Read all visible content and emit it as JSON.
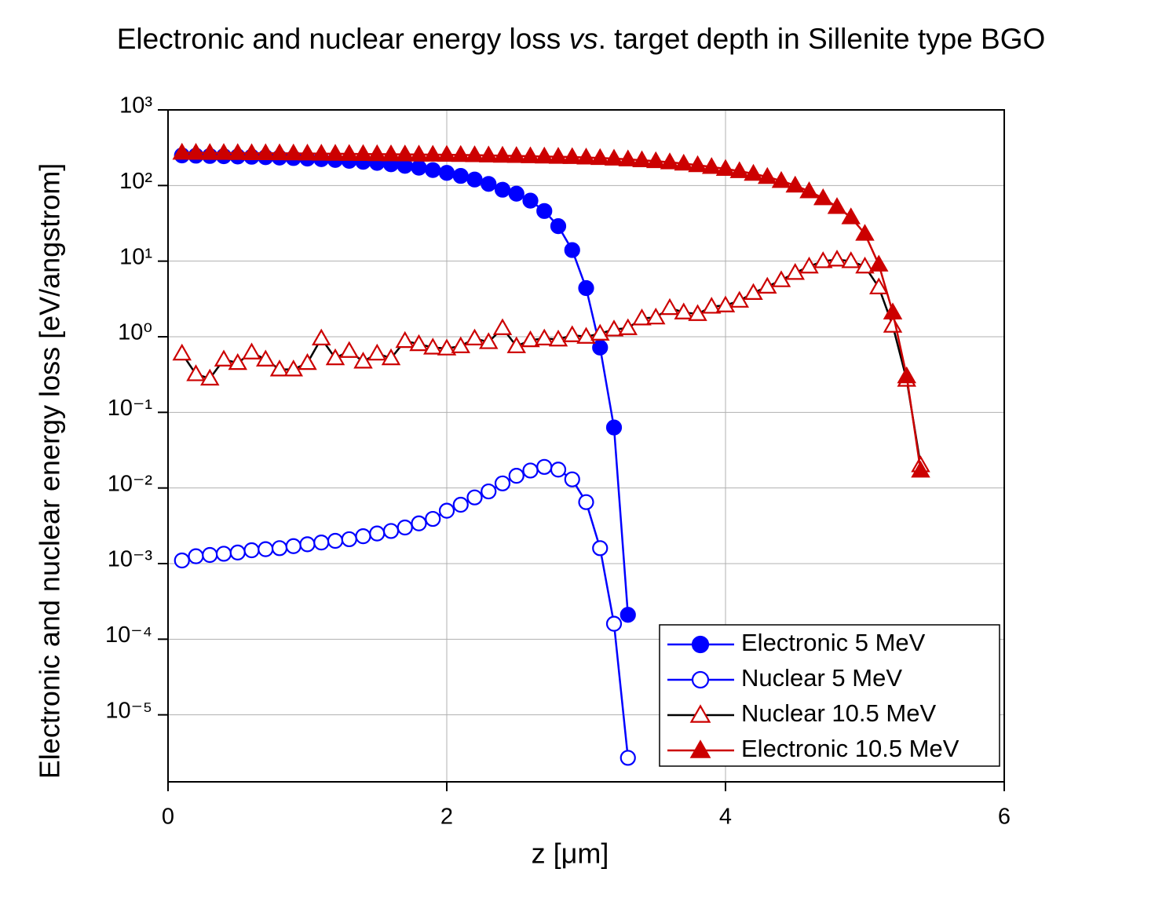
{
  "chart_data": {
    "type": "line",
    "title_parts": [
      "Electronic and nuclear energy loss ",
      "vs",
      ". target depth in Sillenite type BGO"
    ],
    "x_label": "z [μm]",
    "y_label": "Electronic and nuclear energy loss [eV/angstrom]",
    "xlim": [
      0,
      6
    ],
    "xticks": [
      0,
      2,
      4,
      6
    ],
    "ylim": [
      1.3e-06,
      1000
    ],
    "yscale": "log",
    "yticks": [
      {
        "value": 1000,
        "label": "10³"
      },
      {
        "value": 100,
        "label": "10²"
      },
      {
        "value": 10,
        "label": "10¹"
      },
      {
        "value": 1,
        "label": "10⁰"
      },
      {
        "value": 0.1,
        "label": "10⁻¹"
      },
      {
        "value": 0.01,
        "label": "10⁻²"
      },
      {
        "value": 0.001,
        "label": "10⁻³"
      },
      {
        "value": 0.0001,
        "label": "10⁻⁴"
      },
      {
        "value": 1e-05,
        "label": "10⁻⁵"
      }
    ],
    "grid": true,
    "legend": "lower right",
    "series": [
      {
        "name": "Electronic 5 MeV",
        "color": "#0000ff",
        "line_color": "#0000ff",
        "marker": "circle",
        "filled": true,
        "x": [
          0.1,
          0.2,
          0.3,
          0.4,
          0.5,
          0.6,
          0.7,
          0.8,
          0.9,
          1.0,
          1.1,
          1.2,
          1.3,
          1.4,
          1.5,
          1.6,
          1.7,
          1.8,
          1.9,
          2.0,
          2.1,
          2.2,
          2.3,
          2.4,
          2.5,
          2.6,
          2.7,
          2.8,
          2.9,
          3.0,
          3.1,
          3.2,
          3.3
        ],
        "values": [
          250,
          248,
          246,
          244,
          242,
          240,
          237,
          234,
          231,
          227,
          223,
          218,
          212,
          206,
          199,
          191,
          182,
          172,
          160,
          147,
          134,
          120,
          105,
          88,
          78,
          63,
          46,
          29,
          14,
          4.4,
          0.72,
          0.063,
          0.00021
        ]
      },
      {
        "name": "Nuclear 5 MeV",
        "color": "#0000ff",
        "line_color": "#0000ff",
        "marker": "circle",
        "filled": false,
        "x": [
          0.1,
          0.2,
          0.3,
          0.4,
          0.5,
          0.6,
          0.7,
          0.8,
          0.9,
          1.0,
          1.1,
          1.2,
          1.3,
          1.4,
          1.5,
          1.6,
          1.7,
          1.8,
          1.9,
          2.0,
          2.1,
          2.2,
          2.3,
          2.4,
          2.5,
          2.6,
          2.7,
          2.8,
          2.9,
          3.0,
          3.1,
          3.2,
          3.3
        ],
        "values": [
          0.0011,
          0.00125,
          0.0013,
          0.00135,
          0.0014,
          0.0015,
          0.00155,
          0.0016,
          0.0017,
          0.0018,
          0.0019,
          0.002,
          0.0021,
          0.0023,
          0.0025,
          0.0027,
          0.003,
          0.0034,
          0.0039,
          0.005,
          0.006,
          0.0075,
          0.009,
          0.0115,
          0.0145,
          0.017,
          0.019,
          0.0175,
          0.013,
          0.0065,
          0.0016,
          0.00016,
          2.7e-06
        ]
      },
      {
        "name": "Nuclear 10.5 MeV",
        "color": "#cc0000",
        "line_color": "#000000",
        "marker": "triangle",
        "filled": false,
        "x": [
          0.1,
          0.2,
          0.3,
          0.4,
          0.5,
          0.6,
          0.7,
          0.8,
          0.9,
          1.0,
          1.1,
          1.2,
          1.3,
          1.4,
          1.5,
          1.6,
          1.7,
          1.8,
          1.9,
          2.0,
          2.1,
          2.2,
          2.3,
          2.4,
          2.5,
          2.6,
          2.7,
          2.8,
          2.9,
          3.0,
          3.1,
          3.2,
          3.3,
          3.4,
          3.5,
          3.6,
          3.7,
          3.8,
          3.9,
          4.0,
          4.1,
          4.2,
          4.3,
          4.4,
          4.5,
          4.6,
          4.7,
          4.8,
          4.9,
          5.0,
          5.1,
          5.2,
          5.3,
          5.4
        ],
        "values": [
          0.6,
          0.32,
          0.28,
          0.5,
          0.45,
          0.62,
          0.5,
          0.37,
          0.37,
          0.45,
          0.95,
          0.52,
          0.65,
          0.47,
          0.6,
          0.52,
          0.88,
          0.8,
          0.72,
          0.7,
          0.75,
          0.95,
          0.85,
          1.3,
          0.75,
          0.9,
          0.95,
          0.92,
          1.05,
          1.0,
          1.1,
          1.25,
          1.3,
          1.75,
          1.8,
          2.4,
          2.1,
          2.0,
          2.5,
          2.6,
          3.0,
          3.8,
          4.6,
          5.6,
          7.0,
          8.5,
          10,
          10.5,
          10,
          8.5,
          4.5,
          1.4,
          0.27,
          0.02
        ]
      },
      {
        "name": "Electronic 10.5 MeV",
        "color": "#cc0000",
        "line_color": "#cc0000",
        "marker": "triangle",
        "filled": true,
        "x": [
          0.1,
          0.2,
          0.3,
          0.4,
          0.5,
          0.6,
          0.7,
          0.8,
          0.9,
          1.0,
          1.1,
          1.2,
          1.3,
          1.4,
          1.5,
          1.6,
          1.7,
          1.8,
          1.9,
          2.0,
          2.1,
          2.2,
          2.3,
          2.4,
          2.5,
          2.6,
          2.7,
          2.8,
          2.9,
          3.0,
          3.1,
          3.2,
          3.3,
          3.4,
          3.5,
          3.6,
          3.7,
          3.8,
          3.9,
          4.0,
          4.1,
          4.2,
          4.3,
          4.4,
          4.5,
          4.6,
          4.7,
          4.8,
          4.9,
          5.0,
          5.1,
          5.2,
          5.3,
          5.4
        ],
        "values": [
          272,
          271,
          270,
          270,
          269,
          268,
          268,
          267,
          266,
          265,
          264,
          263,
          262,
          261,
          260,
          259,
          258,
          257,
          256,
          255,
          254,
          252,
          250,
          248,
          246,
          244,
          242,
          240,
          238,
          235,
          231,
          227,
          222,
          216,
          210,
          203,
          195,
          186,
          176,
          166,
          155,
          143,
          130,
          115,
          100,
          84,
          68,
          52,
          38,
          23,
          9,
          2.1,
          0.3,
          0.017
        ]
      }
    ]
  }
}
